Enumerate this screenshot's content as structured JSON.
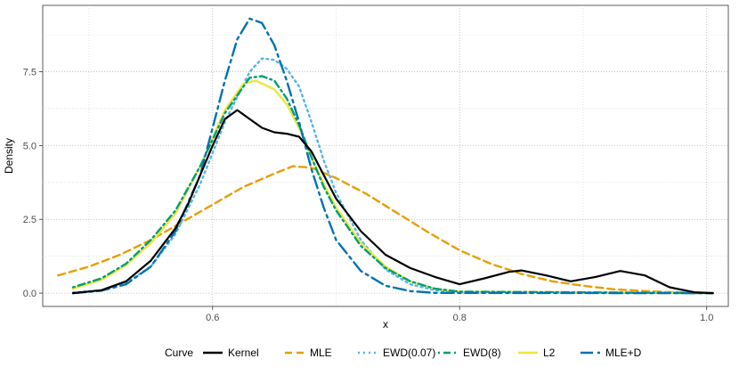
{
  "chart_data": {
    "type": "line",
    "xlabel": "x",
    "ylabel": "Density",
    "xlim": [
      0.4625,
      1.0175
    ],
    "ylim": [
      -0.45,
      9.75
    ],
    "x_ticks": [
      0.6,
      0.8,
      1.0
    ],
    "x_tick_labels": [
      "0.6",
      "0.8",
      "1.0"
    ],
    "x_minor_ticks": [
      0.5,
      0.7,
      0.9
    ],
    "y_ticks": [
      0.0,
      2.5,
      5.0,
      7.5
    ],
    "y_tick_labels": [
      "0.0",
      "2.5",
      "5.0",
      "7.5"
    ],
    "y_minor_ticks": [
      1.25,
      3.75,
      6.25,
      8.75
    ],
    "grid": true,
    "legend": {
      "position": "bottom",
      "title": "Curve",
      "entries": [
        "Kernel",
        "MLE",
        "EWD(0.07)",
        "EWD(8)",
        "L2",
        "MLE+D"
      ]
    },
    "series": [
      {
        "name": "Kernel",
        "color": "#000000",
        "dash": "solid",
        "points": [
          [
            0.487,
            0.0
          ],
          [
            0.51,
            0.1
          ],
          [
            0.53,
            0.4
          ],
          [
            0.55,
            1.1
          ],
          [
            0.57,
            2.2
          ],
          [
            0.58,
            3.0
          ],
          [
            0.59,
            4.0
          ],
          [
            0.6,
            5.0
          ],
          [
            0.61,
            5.9
          ],
          [
            0.62,
            6.2
          ],
          [
            0.63,
            5.9
          ],
          [
            0.64,
            5.6
          ],
          [
            0.65,
            5.45
          ],
          [
            0.66,
            5.4
          ],
          [
            0.67,
            5.3
          ],
          [
            0.68,
            4.8
          ],
          [
            0.69,
            4.0
          ],
          [
            0.7,
            3.2
          ],
          [
            0.72,
            2.1
          ],
          [
            0.74,
            1.3
          ],
          [
            0.76,
            0.85
          ],
          [
            0.78,
            0.55
          ],
          [
            0.8,
            0.3
          ],
          [
            0.82,
            0.5
          ],
          [
            0.84,
            0.72
          ],
          [
            0.85,
            0.77
          ],
          [
            0.87,
            0.6
          ],
          [
            0.89,
            0.4
          ],
          [
            0.91,
            0.55
          ],
          [
            0.93,
            0.75
          ],
          [
            0.95,
            0.6
          ],
          [
            0.97,
            0.2
          ],
          [
            0.99,
            0.03
          ],
          [
            1.005,
            0.0
          ]
        ]
      },
      {
        "name": "MLE",
        "color": "#E69F00",
        "dash": "dashed",
        "points": [
          [
            0.475,
            0.6
          ],
          [
            0.5,
            0.9
          ],
          [
            0.525,
            1.3
          ],
          [
            0.55,
            1.8
          ],
          [
            0.575,
            2.4
          ],
          [
            0.6,
            3.0
          ],
          [
            0.625,
            3.6
          ],
          [
            0.65,
            4.05
          ],
          [
            0.665,
            4.3
          ],
          [
            0.68,
            4.25
          ],
          [
            0.7,
            3.9
          ],
          [
            0.725,
            3.35
          ],
          [
            0.75,
            2.7
          ],
          [
            0.775,
            2.05
          ],
          [
            0.8,
            1.45
          ],
          [
            0.825,
            1.0
          ],
          [
            0.85,
            0.65
          ],
          [
            0.875,
            0.4
          ],
          [
            0.9,
            0.25
          ],
          [
            0.925,
            0.13
          ],
          [
            0.95,
            0.07
          ],
          [
            0.975,
            0.03
          ],
          [
            1.005,
            0.01
          ]
        ]
      },
      {
        "name": "EWD(0.07)",
        "color": "#56B4E9",
        "dash": "dotted",
        "points": [
          [
            0.487,
            0.02
          ],
          [
            0.51,
            0.1
          ],
          [
            0.53,
            0.35
          ],
          [
            0.55,
            0.9
          ],
          [
            0.57,
            2.0
          ],
          [
            0.59,
            3.7
          ],
          [
            0.61,
            5.8
          ],
          [
            0.63,
            7.5
          ],
          [
            0.64,
            7.95
          ],
          [
            0.65,
            7.9
          ],
          [
            0.66,
            7.6
          ],
          [
            0.67,
            7.0
          ],
          [
            0.68,
            5.8
          ],
          [
            0.69,
            4.5
          ],
          [
            0.7,
            3.4
          ],
          [
            0.72,
            1.8
          ],
          [
            0.74,
            0.8
          ],
          [
            0.76,
            0.3
          ],
          [
            0.78,
            0.1
          ],
          [
            0.8,
            0.02
          ],
          [
            1.005,
            0.0
          ]
        ]
      },
      {
        "name": "EWD(8)",
        "color": "#009E73",
        "dash": "dotdash",
        "points": [
          [
            0.487,
            0.2
          ],
          [
            0.51,
            0.5
          ],
          [
            0.53,
            1.0
          ],
          [
            0.55,
            1.8
          ],
          [
            0.57,
            2.8
          ],
          [
            0.59,
            4.3
          ],
          [
            0.61,
            6.1
          ],
          [
            0.63,
            7.3
          ],
          [
            0.64,
            7.35
          ],
          [
            0.65,
            7.2
          ],
          [
            0.66,
            6.6
          ],
          [
            0.67,
            5.7
          ],
          [
            0.68,
            4.6
          ],
          [
            0.69,
            3.6
          ],
          [
            0.7,
            2.8
          ],
          [
            0.72,
            1.6
          ],
          [
            0.74,
            0.85
          ],
          [
            0.76,
            0.4
          ],
          [
            0.78,
            0.15
          ],
          [
            0.8,
            0.05
          ],
          [
            1.005,
            0.0
          ]
        ]
      },
      {
        "name": "L2",
        "color": "#F0E442",
        "dash": "solid",
        "points": [
          [
            0.487,
            0.15
          ],
          [
            0.51,
            0.45
          ],
          [
            0.53,
            0.95
          ],
          [
            0.55,
            1.7
          ],
          [
            0.57,
            2.7
          ],
          [
            0.59,
            4.3
          ],
          [
            0.61,
            6.2
          ],
          [
            0.625,
            7.1
          ],
          [
            0.635,
            7.2
          ],
          [
            0.65,
            6.9
          ],
          [
            0.66,
            6.4
          ],
          [
            0.67,
            5.6
          ],
          [
            0.68,
            4.6
          ],
          [
            0.69,
            3.7
          ],
          [
            0.7,
            2.9
          ],
          [
            0.72,
            1.7
          ],
          [
            0.74,
            0.9
          ],
          [
            0.76,
            0.4
          ],
          [
            0.78,
            0.15
          ],
          [
            0.8,
            0.05
          ],
          [
            1.005,
            0.0
          ]
        ]
      },
      {
        "name": "MLE+D",
        "color": "#0072B2",
        "dash": "longdash",
        "points": [
          [
            0.487,
            0.0
          ],
          [
            0.51,
            0.08
          ],
          [
            0.53,
            0.3
          ],
          [
            0.55,
            0.9
          ],
          [
            0.57,
            2.1
          ],
          [
            0.59,
            4.0
          ],
          [
            0.6,
            5.6
          ],
          [
            0.61,
            7.2
          ],
          [
            0.62,
            8.6
          ],
          [
            0.63,
            9.3
          ],
          [
            0.64,
            9.15
          ],
          [
            0.65,
            8.4
          ],
          [
            0.66,
            7.2
          ],
          [
            0.67,
            5.8
          ],
          [
            0.68,
            4.2
          ],
          [
            0.69,
            2.9
          ],
          [
            0.7,
            1.8
          ],
          [
            0.72,
            0.75
          ],
          [
            0.74,
            0.25
          ],
          [
            0.76,
            0.07
          ],
          [
            0.78,
            0.01
          ],
          [
            1.005,
            0.0
          ]
        ]
      }
    ]
  }
}
